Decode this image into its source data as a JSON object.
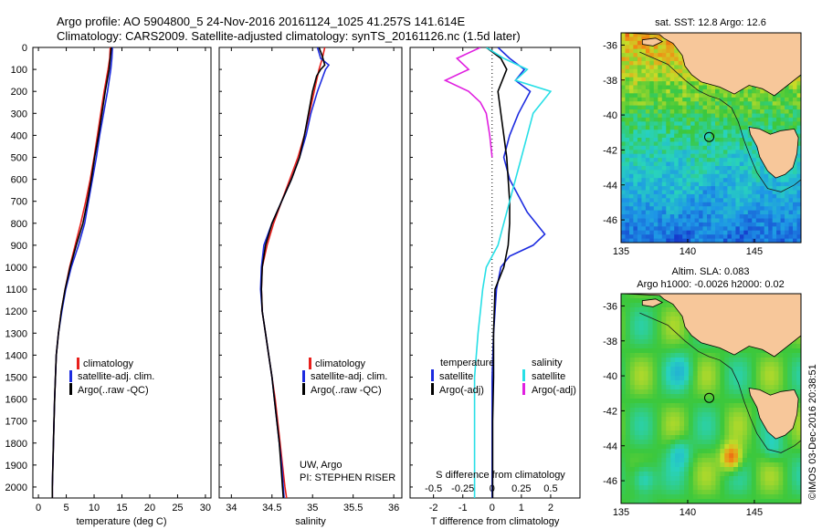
{
  "header": {
    "line1": "Argo profile: AO 5904800_5 24-Nov-2016 20161124_1025 41.257S 141.614E",
    "line2": "Climatology: CARS2009. Satellite-adjusted climatology: synTS_20161126.nc (1.5d later)"
  },
  "colors": {
    "climatology": "#e8201c",
    "satellite": "#1c2be0",
    "argo": "#000000",
    "sat_salinity": "#27dfe6",
    "argo_salinity": "#e020e0",
    "land": "#f7c79a"
  },
  "chart_data": [
    {
      "id": "temperature",
      "type": "line",
      "xlabel": "temperature (deg C)",
      "ylabel": "",
      "xlim": [
        -1,
        31
      ],
      "ylim": [
        2050,
        0
      ],
      "xticks": [
        "0",
        "5",
        "10",
        "15",
        "20",
        "25",
        "30"
      ],
      "yticks": [
        "0",
        "100",
        "200",
        "300",
        "400",
        "500",
        "600",
        "700",
        "800",
        "900",
        "1000",
        "1100",
        "1200",
        "1300",
        "1400",
        "1500",
        "1600",
        "1700",
        "1800",
        "1900",
        "2000"
      ],
      "legend": [
        "climatology",
        "satellite-adj. clim.",
        "Argo(..raw -QC)"
      ],
      "series": [
        {
          "name": "climatology",
          "color": "#e8201c",
          "depth": [
            0,
            50,
            100,
            200,
            300,
            400,
            500,
            600,
            700,
            800,
            900,
            1000,
            1100,
            1200,
            1300,
            1400,
            1600,
            1800,
            2000,
            2050
          ],
          "values": [
            12.9,
            12.8,
            12.5,
            11.8,
            11.2,
            10.6,
            10.0,
            9.3,
            8.5,
            7.6,
            6.6,
            5.6,
            4.8,
            4.1,
            3.6,
            3.2,
            2.9,
            2.7,
            2.5,
            2.5
          ]
        },
        {
          "name": "satellite-adj. clim.",
          "color": "#1c2be0",
          "depth": [
            0,
            50,
            100,
            200,
            300,
            400,
            500,
            600,
            700,
            800,
            900,
            1000,
            1100,
            1200,
            1300,
            1400,
            1600,
            1800,
            2000,
            2050
          ],
          "values": [
            13.3,
            13.2,
            13.0,
            12.4,
            11.7,
            11.0,
            10.4,
            9.7,
            9.0,
            8.3,
            7.2,
            5.9,
            4.9,
            4.2,
            3.6,
            3.2,
            2.9,
            2.7,
            2.5,
            2.5
          ]
        },
        {
          "name": "Argo(..raw -QC)",
          "color": "#000000",
          "depth": [
            0,
            50,
            100,
            200,
            300,
            400,
            500,
            600,
            700,
            800,
            900,
            1000,
            1100,
            1200,
            1300,
            1400,
            1600,
            1800,
            2000,
            2050
          ],
          "values": [
            13.1,
            12.9,
            12.7,
            12.0,
            11.4,
            10.8,
            10.1,
            9.5,
            8.8,
            8.0,
            6.8,
            5.7,
            4.8,
            4.1,
            3.6,
            3.2,
            2.9,
            2.7,
            2.5,
            2.5
          ]
        }
      ]
    },
    {
      "id": "salinity",
      "type": "line",
      "xlabel": "salinity",
      "ylabel": "",
      "xlim": [
        33.85,
        36.1
      ],
      "ylim": [
        2050,
        0
      ],
      "xticks": [
        "34",
        "34.5",
        "35",
        "35.5",
        "36"
      ],
      "legend": [
        "climatology",
        "satellite-adj. clim.",
        "Argo(..raw -QC)"
      ],
      "annotation": [
        "UW, Argo",
        "PI: STEPHEN RISER"
      ],
      "series": [
        {
          "name": "climatology",
          "color": "#e8201c",
          "depth": [
            0,
            50,
            100,
            200,
            300,
            400,
            500,
            600,
            700,
            800,
            900,
            1000,
            1100,
            1200,
            1300,
            1400,
            1500,
            1600,
            1700,
            1800,
            1900,
            2000,
            2050
          ],
          "values": [
            35.15,
            35.12,
            35.08,
            35.02,
            34.96,
            34.9,
            34.82,
            34.72,
            34.62,
            34.52,
            34.44,
            34.38,
            34.37,
            34.38,
            34.42,
            34.46,
            34.5,
            34.54,
            34.57,
            34.6,
            34.63,
            34.66,
            34.68
          ]
        },
        {
          "name": "satellite-adj. clim.",
          "color": "#1c2be0",
          "depth": [
            0,
            50,
            80,
            100,
            200,
            300,
            400,
            500,
            600,
            700,
            800,
            900,
            1000,
            1100,
            1200,
            1300,
            1400,
            1500,
            1600,
            1700,
            1800,
            1900,
            2000,
            2050
          ],
          "values": [
            35.06,
            35.1,
            35.2,
            35.16,
            35.06,
            34.98,
            34.92,
            34.84,
            34.74,
            34.62,
            34.5,
            34.4,
            34.37,
            34.36,
            34.38,
            34.42,
            34.46,
            34.5,
            34.53,
            34.56,
            34.59,
            34.62,
            34.64,
            34.65
          ]
        },
        {
          "name": "Argo(..raw -QC)",
          "color": "#000000",
          "depth": [
            0,
            40,
            80,
            100,
            130,
            200,
            300,
            400,
            500,
            600,
            700,
            800,
            900,
            1000,
            1100,
            1200,
            1300,
            1400,
            1500,
            1600,
            1700,
            1800,
            1900,
            2000,
            2050
          ],
          "values": [
            35.08,
            35.12,
            35.15,
            35.1,
            35.05,
            35.0,
            34.95,
            34.9,
            34.84,
            34.74,
            34.62,
            34.5,
            34.42,
            34.38,
            34.37,
            34.38,
            34.42,
            34.46,
            34.5,
            34.53,
            34.56,
            34.59,
            34.61,
            34.63,
            34.64
          ]
        }
      ]
    },
    {
      "id": "difference",
      "type": "line",
      "xlabel": "T difference from climatology",
      "xlabel_top": "S difference from climatology",
      "xlim": [
        -2.8,
        3.0
      ],
      "ylim": [
        2050,
        0
      ],
      "xticks": [
        "-2",
        "-1",
        "0",
        "1",
        "2"
      ],
      "xticks_top": [
        "-0.5",
        "-0.25",
        "0",
        "0.25",
        "0.5"
      ],
      "legend_temperature": [
        "temperature",
        "satellite",
        "Argo(-adj)"
      ],
      "legend_salinity": [
        "salinity",
        "satellite",
        "Argo(-adj)"
      ],
      "series": [
        {
          "name": "temperature satellite",
          "color": "#1c2be0",
          "depth": [
            0,
            50,
            100,
            150,
            200,
            300,
            400,
            500,
            600,
            700,
            750,
            800,
            850,
            900,
            950,
            1000,
            1100,
            1300,
            1500,
            1700,
            1900,
            2050
          ],
          "values": [
            0.2,
            0.6,
            1.1,
            0.8,
            1.3,
            0.9,
            0.6,
            0.4,
            0.6,
            1.0,
            1.2,
            1.5,
            1.8,
            1.4,
            0.6,
            0.3,
            0.15,
            0.05,
            0.0,
            0.0,
            0.0,
            0.0
          ]
        },
        {
          "name": "temperature Argo(-adj)",
          "color": "#000000",
          "depth": [
            0,
            50,
            100,
            200,
            300,
            400,
            500,
            600,
            700,
            800,
            900,
            1000,
            1100,
            1300,
            1500,
            1700,
            1900,
            2050
          ],
          "values": [
            -0.2,
            0.3,
            0.5,
            0.2,
            0.3,
            0.4,
            0.5,
            0.55,
            0.6,
            0.6,
            0.55,
            0.4,
            0.1,
            0.05,
            0.05,
            0.02,
            0.02,
            0.02
          ]
        },
        {
          "name": "salinity satellite",
          "color": "#27dfe6",
          "depth": [
            0,
            50,
            100,
            150,
            200,
            300,
            400,
            500,
            600,
            700,
            800,
            900,
            1000,
            1100,
            1200,
            1300,
            1500,
            1700,
            1900,
            2050
          ],
          "values": [
            -0.05,
            0.1,
            0.3,
            0.2,
            0.5,
            0.35,
            0.3,
            0.25,
            0.2,
            0.15,
            0.1,
            0.05,
            -0.05,
            -0.08,
            -0.1,
            -0.12,
            -0.15,
            -0.15,
            -0.15,
            -0.15
          ]
        },
        {
          "name": "salinity Argo(-adj)",
          "color": "#e020e0",
          "depth": [
            0,
            50,
            100,
            150,
            200,
            250,
            300,
            400,
            500
          ],
          "values": [
            -0.1,
            -0.3,
            -0.2,
            -0.4,
            -0.2,
            -0.1,
            -0.05,
            -0.02,
            0.0
          ]
        }
      ]
    },
    {
      "id": "map-sst",
      "type": "heatmap",
      "title": "sat. SST: 12.8 Argo: 12.6",
      "xlim": [
        135,
        148.5
      ],
      "ylim": [
        -47.3,
        -35.3
      ],
      "xticks": [
        "135",
        "140",
        "145"
      ],
      "yticks": [
        "-36",
        "-38",
        "-40",
        "-42",
        "-44",
        "-46"
      ],
      "marker": {
        "lon": 141.614,
        "lat": -41.257
      }
    },
    {
      "id": "map-sla",
      "type": "heatmap",
      "title_line1": "Altim. SLA: 0.083",
      "title_line2": "Argo h1000: -0.0026 h2000: 0.02",
      "xlim": [
        135,
        148.5
      ],
      "ylim": [
        -47.3,
        -35.3
      ],
      "xticks": [
        "135",
        "140",
        "145"
      ],
      "yticks": [
        "-36",
        "-38",
        "-40",
        "-42",
        "-44",
        "-46"
      ],
      "marker": {
        "lon": 141.614,
        "lat": -41.257
      }
    }
  ],
  "footer": {
    "credit": "©IMOS 03-Dec-2016 20:38:51"
  }
}
